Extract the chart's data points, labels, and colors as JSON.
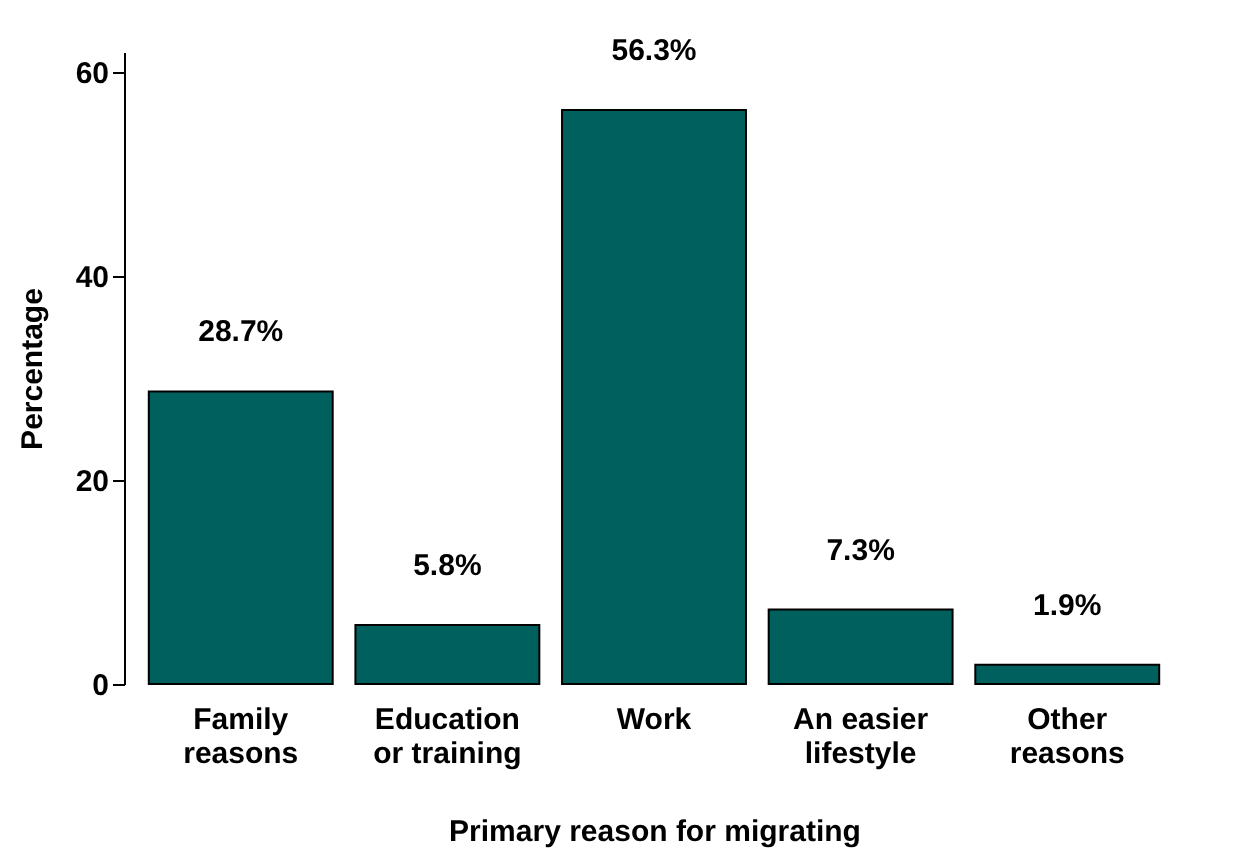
{
  "chart_data": {
    "type": "bar",
    "xlabel": "Primary reason for migrating",
    "ylabel": "Percentage",
    "categories": [
      "Family reasons",
      "Education or training",
      "Work",
      "An easier lifestyle",
      "Other reasons"
    ],
    "values": [
      28.7,
      5.8,
      56.3,
      7.3,
      1.9
    ],
    "value_labels": [
      "28.7%",
      "5.8%",
      "56.3%",
      "7.3%",
      "1.9%"
    ],
    "color": "#00605e",
    "ylim": [
      0,
      62
    ],
    "yticks": [
      0,
      20,
      40,
      60
    ],
    "grid": false
  }
}
